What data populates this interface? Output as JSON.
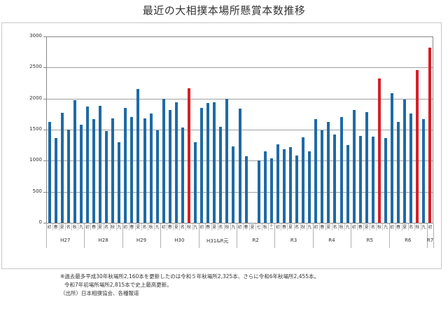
{
  "title": "最近の大相撲本場所懸賞本数推移",
  "colors": {
    "normal": "#1f6aa5",
    "record": "#d42027",
    "grid": "#a0a0a0"
  },
  "notes": [
    "※過去最多平成30年秋場所2,160本を更新したのは令和５年秋場所2,325本、さらに令和6年秋場所2,455本。",
    "令和7年初場所場所2,815本で史上最高更新。",
    "（出所）日本相撲協会、各種報道"
  ],
  "chart_data": {
    "type": "bar",
    "title": "最近の大相撲本場所懸賞本数推移",
    "xlabel": "",
    "ylabel": "",
    "ylim": [
      0,
      3000
    ],
    "yticks": [
      0,
      500,
      1000,
      1500,
      2000,
      2500,
      3000
    ],
    "grid": true,
    "legend": null,
    "groups": [
      {
        "label": "H27",
        "tournaments": [
          "初",
          "春",
          "夏",
          "名",
          "秋",
          "九"
        ]
      },
      {
        "label": "H28",
        "tournaments": [
          "初",
          "春",
          "夏",
          "名",
          "秋",
          "九"
        ]
      },
      {
        "label": "H29",
        "tournaments": [
          "初",
          "春",
          "夏",
          "名",
          "秋",
          "九"
        ]
      },
      {
        "label": "H30",
        "tournaments": [
          "初",
          "春",
          "夏",
          "名",
          "秋",
          "九"
        ]
      },
      {
        "label": "H31&R元",
        "tournaments": [
          "初",
          "春",
          "夏",
          "名",
          "秋",
          "九"
        ]
      },
      {
        "label": "R2",
        "tournaments": [
          "初",
          "春",
          "夏",
          "七",
          "秋",
          "十一"
        ]
      },
      {
        "label": "R3",
        "tournaments": [
          "初",
          "春",
          "夏",
          "名",
          "秋",
          "九"
        ]
      },
      {
        "label": "R4",
        "tournaments": [
          "初",
          "春",
          "夏",
          "名",
          "秋",
          "九"
        ]
      },
      {
        "label": "R5",
        "tournaments": [
          "初",
          "春",
          "夏",
          "名",
          "秋",
          "九"
        ]
      },
      {
        "label": "R6",
        "tournaments": [
          "初",
          "春",
          "夏",
          "名",
          "秋",
          "九"
        ]
      },
      {
        "label": "R7",
        "tournaments": [
          "初"
        ]
      }
    ],
    "categories": [
      "H27初",
      "H27春",
      "H27夏",
      "H27名",
      "H27秋",
      "H27九",
      "H28初",
      "H28春",
      "H28夏",
      "H28名",
      "H28秋",
      "H28九",
      "H29初",
      "H29春",
      "H29夏",
      "H29名",
      "H29秋",
      "H29九",
      "H30初",
      "H30春",
      "H30夏",
      "H30名",
      "H30秋",
      "H30九",
      "H31初",
      "H31春",
      "R元夏",
      "R元名",
      "R元秋",
      "R元九",
      "R2初",
      "R2春",
      "R2夏",
      "R2七",
      "R2秋",
      "R2十一",
      "R3初",
      "R3春",
      "R3夏",
      "R3名",
      "R3秋",
      "R3九",
      "R4初",
      "R4春",
      "R4夏",
      "R4名",
      "R4秋",
      "R4九",
      "R5初",
      "R5春",
      "R5夏",
      "R5名",
      "R5秋",
      "R5九",
      "R6初",
      "R6春",
      "R6夏",
      "R6名",
      "R6秋",
      "R6九",
      "R7初"
    ],
    "series": [
      {
        "name": "懸賞本数",
        "values": [
          1625,
          1369,
          1775,
          1504,
          1979,
          1580,
          1869,
          1670,
          1888,
          1474,
          1681,
          1298,
          1846,
          1707,
          2151,
          1677,
          1756,
          1493,
          1993,
          1820,
          1941,
          1535,
          2160,
          1298,
          1846,
          1933,
          1937,
          1550,
          1993,
          1226,
          1835,
          1068,
          null,
          1000,
          1151,
          1042,
          1268,
          1188,
          1215,
          1087,
          1372,
          1155,
          1674,
          1493,
          1625,
          1425,
          1700,
          1256,
          1813,
          1403,
          1786,
          1384,
          2325,
          1369,
          2088,
          1625,
          1982,
          1756,
          2455,
          1666,
          2815
        ]
      }
    ],
    "highlighted": [
      "H30秋",
      "R5秋",
      "R6秋",
      "R7初"
    ],
    "annotations": [
      "過去最多平成30年秋場所2,160本",
      "令和5年秋場所2,325本",
      "令和6年秋場所2,455本",
      "令和7年初場所2,815本 史上最高"
    ]
  }
}
